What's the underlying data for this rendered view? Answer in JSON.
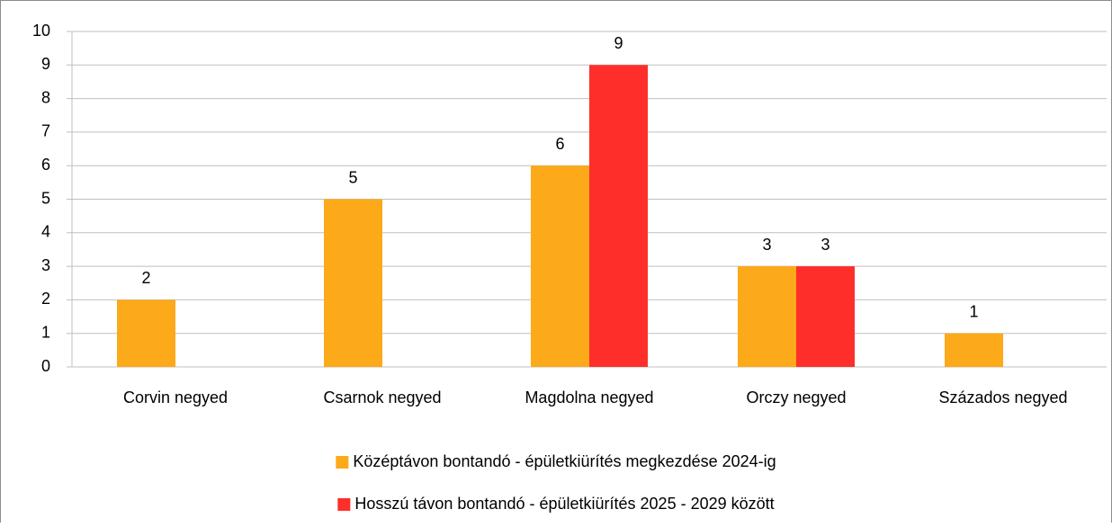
{
  "chart_data": {
    "type": "bar",
    "categories": [
      "Corvin negyed",
      "Csarnok negyed",
      "Magdolna negyed",
      "Orczy negyed",
      "Százados negyed"
    ],
    "series": [
      {
        "name": "Középtávon bontandó - épületkiürítés megkezdése 2024-ig",
        "color": "#fca91a",
        "values": [
          2,
          5,
          6,
          3,
          1
        ]
      },
      {
        "name": "Hosszú távon bontandó - épületkiürítés 2025 - 2029 között",
        "color": "#fe2e2b",
        "values": [
          null,
          null,
          9,
          3,
          null
        ]
      }
    ],
    "ylim": [
      0,
      10
    ],
    "yticks": [
      0,
      1,
      2,
      3,
      4,
      5,
      6,
      7,
      8,
      9,
      10
    ],
    "grid": true,
    "legend": "bottom"
  }
}
